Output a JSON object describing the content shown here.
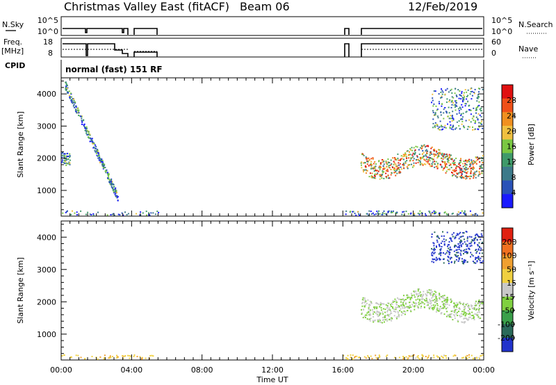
{
  "header": {
    "title": "Christmas Valley East (fitACF)",
    "beam": "Beam 06",
    "date": "12/Feb/2019"
  },
  "params": {
    "nsky_label": "N.Sky",
    "nsky_ticks": [
      "10^5",
      "10^0"
    ],
    "nsearch_label": "N.Search",
    "nsearch_ticks": [
      "10^5",
      "10^0"
    ],
    "freq_label_1": "Freq.",
    "freq_label_2": "[MHz]",
    "freq_ticks": [
      "18",
      "8"
    ],
    "nave_label": "Nave",
    "nave_ticks": [
      "60",
      "0"
    ],
    "cpid_label": "CPID",
    "cpid_value": "normal (fast) 151 RF"
  },
  "time_axis": {
    "label": "Time UT",
    "ticks": [
      "00:00",
      "04:00",
      "08:00",
      "12:00",
      "16:00",
      "20:00",
      "00:00"
    ]
  },
  "chart_data": [
    {
      "type": "heatmap",
      "name": "power",
      "ylabel": "Slant Range [km]",
      "yticks": [
        1000,
        2000,
        3000,
        4000
      ],
      "ylim": [
        200,
        4500
      ],
      "xlim_hours": [
        0,
        24
      ],
      "colorbar_label": "Power [dB]",
      "colorbar_ticks": [
        4,
        8,
        12,
        16,
        20,
        24,
        28
      ],
      "colorbar_colors": [
        "#1a1aff",
        "#2a52b8",
        "#3d7a8a",
        "#3f9a6a",
        "#7ac742",
        "#f0c040",
        "#f09020",
        "#f05018",
        "#e01010"
      ],
      "features": [
        {
          "desc": "early morning scatter",
          "start_hour": 0.0,
          "end_hour": 0.5,
          "range_km": [
            1800,
            2200
          ]
        },
        {
          "desc": "descending trail",
          "start_hour": 0.2,
          "end_hour": 3.2,
          "range_km": [
            800,
            4300
          ]
        },
        {
          "desc": "afternoon/evening band",
          "start_hour": 17.0,
          "end_hour": 24.0,
          "range_km": [
            1500,
            2300
          ]
        },
        {
          "desc": "late far-range echoes",
          "start_hour": 21.0,
          "end_hour": 24.0,
          "range_km": [
            2900,
            4200
          ]
        }
      ]
    },
    {
      "type": "heatmap",
      "name": "velocity",
      "ylabel": "Slant Range [km]",
      "yticks": [
        1000,
        2000,
        3000,
        4000
      ],
      "ylim": [
        200,
        4500
      ],
      "xlim_hours": [
        0,
        24
      ],
      "colorbar_label": "Velocity [m s⁻¹]",
      "colorbar_ticks": [
        200,
        100,
        50,
        15,
        -15,
        -50,
        -100,
        -200
      ],
      "colorbar_colors": [
        "#2233cc",
        "#2a6a5a",
        "#3aa04a",
        "#80d040",
        "#c8c8c8",
        "#f0d040",
        "#f0a030",
        "#f07020",
        "#e02010"
      ],
      "features": [
        {
          "desc": "ground scatter band (near zero velocity)",
          "start_hour": 17.0,
          "end_hour": 24.0,
          "range_km": [
            1500,
            2300
          ]
        },
        {
          "desc": "receding echoes",
          "start_hour": 21.0,
          "end_hour": 24.0,
          "range_km": [
            3200,
            4200
          ]
        }
      ]
    }
  ]
}
